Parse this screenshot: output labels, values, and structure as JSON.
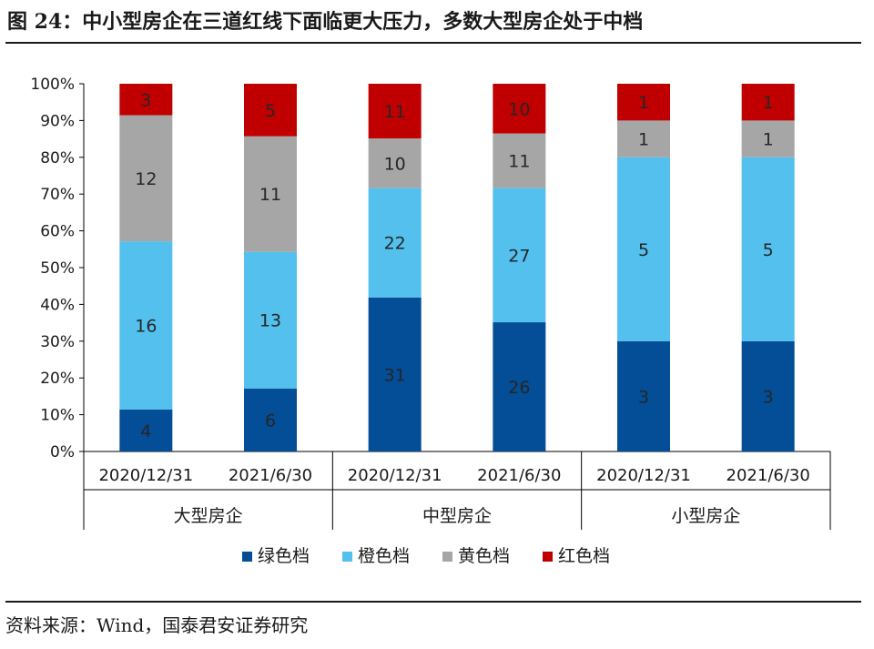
{
  "figure": {
    "title": "图 24：中小型房企在三道红线下面临更大压力，多数大型房企处于中档",
    "source": "资料来源：Wind，国泰君安证券研究"
  },
  "chart_data": {
    "type": "bar",
    "stacked": true,
    "normalized": true,
    "groups": [
      "大型房企",
      "中型房企",
      "小型房企"
    ],
    "categories": [
      "2020/12/31",
      "2021/6/30",
      "2020/12/31",
      "2021/6/30",
      "2020/12/31",
      "2021/6/30"
    ],
    "category_group": [
      0,
      0,
      1,
      1,
      2,
      2
    ],
    "series": [
      {
        "name": "绿色档",
        "color": "#044d97",
        "values": [
          4,
          6,
          31,
          26,
          3,
          3
        ]
      },
      {
        "name": "橙色档",
        "color": "#53c0ee",
        "values": [
          16,
          13,
          22,
          27,
          5,
          5
        ]
      },
      {
        "name": "黄色档",
        "color": "#a6a6a6",
        "values": [
          12,
          11,
          10,
          11,
          1,
          1
        ]
      },
      {
        "name": "红色档",
        "color": "#c00000",
        "values": [
          3,
          5,
          11,
          10,
          1,
          1
        ]
      }
    ],
    "ylim": [
      0,
      100
    ],
    "yticks": [
      "0%",
      "10%",
      "20%",
      "30%",
      "40%",
      "50%",
      "60%",
      "70%",
      "80%",
      "90%",
      "100%"
    ],
    "grid": false,
    "legend": "bottom"
  }
}
